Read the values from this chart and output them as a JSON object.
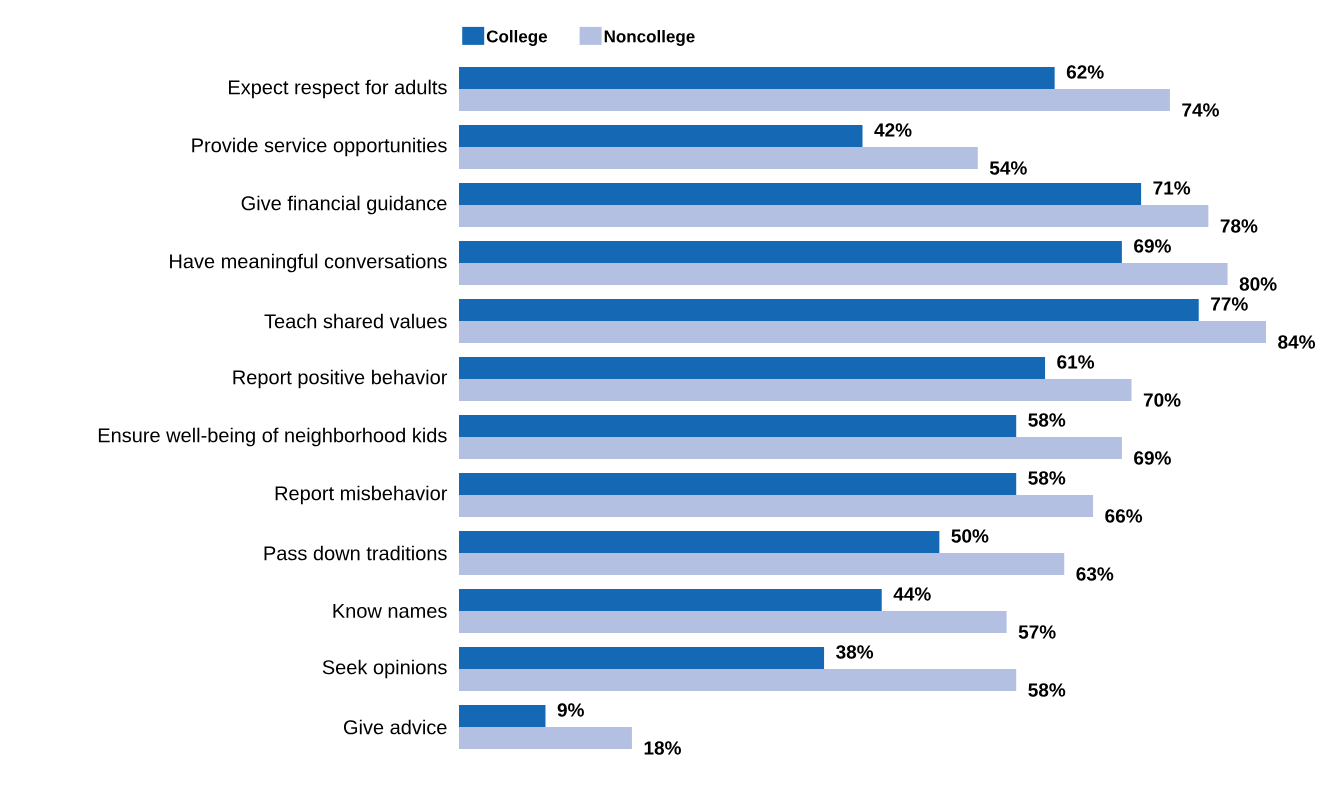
{
  "chart_data": {
    "type": "bar",
    "orientation": "horizontal",
    "legend": "top",
    "categories": [
      "Expect respect for adults",
      "Provide service opportunities",
      "Give financial guidance",
      "Have meaningful conversations",
      "Teach shared values",
      "Report positive behavior",
      "Ensure well-being of neighborhood kids",
      "Report misbehavior",
      "Pass down traditions",
      "Know names",
      "Seek opinions",
      "Give advice"
    ],
    "series": [
      {
        "name": "College",
        "color": "#1569b4",
        "values": [
          62,
          42,
          71,
          69,
          77,
          61,
          58,
          58,
          50,
          44,
          38,
          9
        ],
        "value_labels": [
          "62%",
          "42%",
          "71%",
          "69%",
          "77%",
          "61%",
          "58%",
          "58%",
          "50%",
          "44%",
          "38%",
          "9%"
        ]
      },
      {
        "name": "Noncollege",
        "color": "#b4c0e2",
        "values": [
          74,
          54,
          78,
          80,
          84,
          70,
          69,
          66,
          63,
          57,
          58,
          18
        ],
        "value_labels": [
          "74%",
          "54%",
          "78%",
          "80%",
          "84%",
          "70%",
          "69%",
          "66%",
          "63%",
          "57%",
          "58%",
          "18%"
        ]
      }
    ]
  }
}
